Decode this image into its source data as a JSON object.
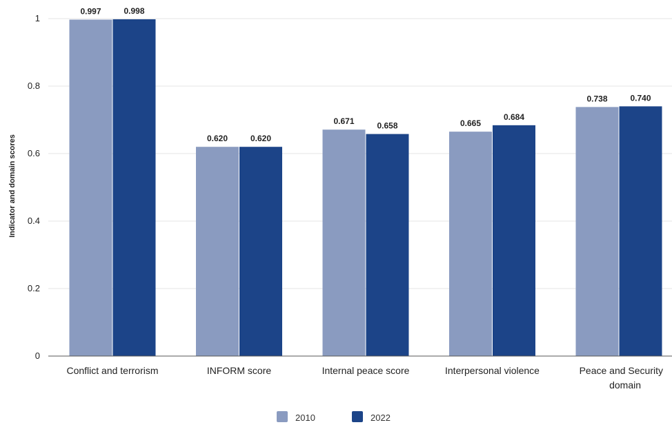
{
  "chart_data": {
    "type": "bar",
    "title": "",
    "xlabel": "",
    "ylabel": "Indicator and domain scores",
    "ylim": [
      0,
      1
    ],
    "yticks": [
      0,
      0.2,
      0.4,
      0.6,
      0.8,
      1
    ],
    "ytick_labels": [
      "0",
      "0.2",
      "0.4",
      "0.6",
      "0.8",
      "1"
    ],
    "grid": true,
    "legend_position": "bottom",
    "categories": [
      [
        "Conflict and terrorism"
      ],
      [
        "INFORM score"
      ],
      [
        "Internal peace score"
      ],
      [
        "Interpersonal violence"
      ],
      [
        "Peace and Security",
        "domain"
      ]
    ],
    "series": [
      {
        "name": "2010",
        "color": "#8a9bc0",
        "values": [
          0.997,
          0.62,
          0.671,
          0.665,
          0.738
        ],
        "labels": [
          "0.997",
          "0.620",
          "0.671",
          "0.665",
          "0.738"
        ]
      },
      {
        "name": "2022",
        "color": "#1c4488",
        "values": [
          0.998,
          0.62,
          0.658,
          0.684,
          0.74
        ],
        "labels": [
          "0.998",
          "0.620",
          "0.658",
          "0.684",
          "0.740"
        ]
      }
    ]
  }
}
